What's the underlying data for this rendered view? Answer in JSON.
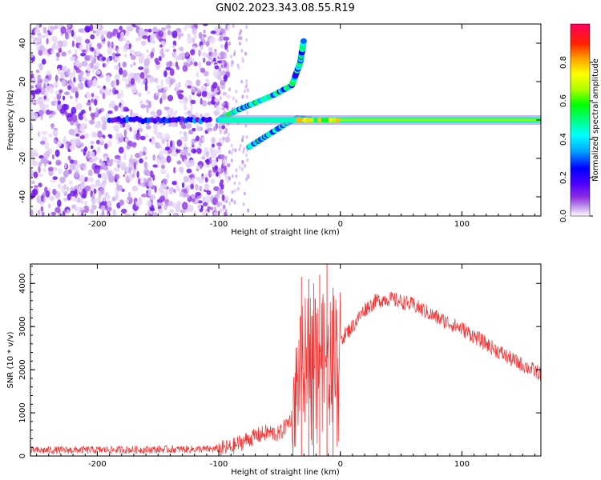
{
  "figure_title": "GN02.2023.343.08.55.R19",
  "chart_data": [
    {
      "type": "heatmap",
      "xlabel": "Height of straight line (km)",
      "ylabel": "Frequency (Hz)",
      "xlim": [
        -255,
        165
      ],
      "ylim": [
        -50,
        50
      ],
      "xticks": [
        -200,
        -100,
        0,
        100
      ],
      "xtick_labels": [
        "-200",
        "-100",
        "0",
        "100"
      ],
      "yticks": [
        -40,
        -20,
        0,
        20,
        40
      ],
      "ytick_labels": [
        "-40",
        "-20",
        "0",
        "20",
        "40"
      ],
      "colorbar": {
        "label": "Normalized spectral amplitude",
        "range": [
          0,
          1
        ],
        "ticks": [
          0.0,
          0.2,
          0.4,
          0.6,
          0.8
        ],
        "tick_labels": [
          "0.0",
          "0.2",
          "0.4",
          "0.6",
          "0.8"
        ],
        "colormap": [
          "#ffffff",
          "#c9a6ee",
          "#8a2be2",
          "#4a00ff",
          "#0000ff",
          "#00a8ff",
          "#00ffff",
          "#00ff80",
          "#00ff00",
          "#b0ff00",
          "#ffff00",
          "#ffa000",
          "#ff2000",
          "#ff0060"
        ]
      },
      "features": {
        "noise_region_x": [
          -255,
          -100
        ],
        "carrier_line": {
          "x_start": -100,
          "x_end": 165,
          "frequency": 0
        },
        "upper_branch": [
          [
            -100,
            0
          ],
          [
            -85,
            5
          ],
          [
            -70,
            9
          ],
          [
            -55,
            13
          ],
          [
            -40,
            18
          ],
          [
            -33,
            30
          ],
          [
            -30,
            42
          ]
        ],
        "lower_branch": [
          [
            -75,
            -14
          ],
          [
            -60,
            -8
          ],
          [
            -45,
            -2
          ],
          [
            -35,
            1
          ],
          [
            -20,
            0
          ]
        ]
      },
      "grid": false
    },
    {
      "type": "line",
      "xlabel": "Height of straight line (km)",
      "ylabel": "SNR (10 * v/v)",
      "xlim": [
        -255,
        165
      ],
      "ylim": [
        0,
        4450
      ],
      "xticks": [
        -200,
        -100,
        0,
        100
      ],
      "xtick_labels": [
        "-200",
        "-100",
        "0",
        "100"
      ],
      "yticks": [
        0,
        1000,
        2000,
        3000,
        4000
      ],
      "ytick_labels": [
        "0",
        "1000",
        "2000",
        "3000",
        "4000"
      ],
      "color": "#ee3333",
      "envelope": {
        "x": [
          -255,
          -100,
          -90,
          -75,
          -60,
          -50,
          -40,
          -35,
          -30,
          -25,
          -20,
          -15,
          -12,
          -10,
          -5,
          0,
          10,
          20,
          30,
          40,
          60,
          80,
          100,
          120,
          140,
          165
        ],
        "y": [
          130,
          160,
          200,
          400,
          550,
          500,
          900,
          1800,
          2300,
          2600,
          2800,
          2500,
          2400,
          2200,
          2600,
          2700,
          3000,
          3400,
          3600,
          3650,
          3500,
          3200,
          2950,
          2600,
          2250,
          1900
        ]
      },
      "spikes": [
        {
          "x": -32,
          "y": 4150
        },
        {
          "x": -26,
          "y": 4100
        },
        {
          "x": -22,
          "y": 4000
        },
        {
          "x": -17,
          "y": 4200
        },
        {
          "x": -11,
          "y": 4450
        },
        {
          "x": -6,
          "y": 3900
        }
      ],
      "grid": false
    }
  ]
}
